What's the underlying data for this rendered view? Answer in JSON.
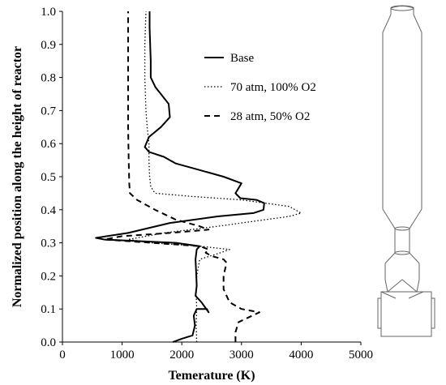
{
  "chart_data": {
    "type": "line",
    "xlabel": "Temerature (K)",
    "ylabel": "Normalized position along the height of reactor",
    "xlim": [
      0,
      5000
    ],
    "ylim": [
      0,
      1
    ],
    "xticks": [
      "0",
      "1000",
      "2000",
      "3000",
      "4000",
      "5000"
    ],
    "yticks": [
      "0.0",
      "0.1",
      "0.2",
      "0.3",
      "0.4",
      "0.5",
      "0.6",
      "0.7",
      "0.8",
      "0.9",
      "1.0"
    ],
    "grid": false,
    "legend_position": "top-right",
    "series": [
      {
        "name": "Base",
        "style": "solid",
        "points": [
          [
            1850,
            0.0
          ],
          [
            2000,
            0.01
          ],
          [
            2180,
            0.02
          ],
          [
            2220,
            0.05
          ],
          [
            2200,
            0.08
          ],
          [
            2250,
            0.1
          ],
          [
            2300,
            0.1
          ],
          [
            2420,
            0.1
          ],
          [
            2450,
            0.09
          ],
          [
            2330,
            0.12
          ],
          [
            2230,
            0.14
          ],
          [
            2250,
            0.17
          ],
          [
            2240,
            0.21
          ],
          [
            2230,
            0.25
          ],
          [
            2250,
            0.28
          ],
          [
            2300,
            0.29
          ],
          [
            1900,
            0.3
          ],
          [
            700,
            0.31
          ],
          [
            560,
            0.315
          ],
          [
            1100,
            0.33
          ],
          [
            1800,
            0.36
          ],
          [
            2600,
            0.38
          ],
          [
            3200,
            0.39
          ],
          [
            3370,
            0.4
          ],
          [
            3380,
            0.42
          ],
          [
            3250,
            0.43
          ],
          [
            2980,
            0.435
          ],
          [
            2900,
            0.45
          ],
          [
            3000,
            0.48
          ],
          [
            2700,
            0.5
          ],
          [
            2300,
            0.52
          ],
          [
            1900,
            0.54
          ],
          [
            1700,
            0.56
          ],
          [
            1450,
            0.575
          ],
          [
            1380,
            0.59
          ],
          [
            1450,
            0.62
          ],
          [
            1650,
            0.65
          ],
          [
            1800,
            0.68
          ],
          [
            1780,
            0.72
          ],
          [
            1650,
            0.75
          ],
          [
            1560,
            0.77
          ],
          [
            1480,
            0.8
          ],
          [
            1480,
            0.85
          ],
          [
            1470,
            0.9
          ],
          [
            1460,
            0.95
          ],
          [
            1460,
            1.0
          ]
        ]
      },
      {
        "name": "70 atm, 100% O2",
        "style": "dotted",
        "points": [
          [
            2250,
            0.0
          ],
          [
            2240,
            0.05
          ],
          [
            2250,
            0.1
          ],
          [
            2240,
            0.15
          ],
          [
            2250,
            0.2
          ],
          [
            2300,
            0.25
          ],
          [
            2650,
            0.27
          ],
          [
            2800,
            0.28
          ],
          [
            2300,
            0.29
          ],
          [
            1500,
            0.3
          ],
          [
            1100,
            0.31
          ],
          [
            1700,
            0.33
          ],
          [
            2600,
            0.35
          ],
          [
            3400,
            0.37
          ],
          [
            3800,
            0.38
          ],
          [
            4000,
            0.39
          ],
          [
            3800,
            0.41
          ],
          [
            3000,
            0.43
          ],
          [
            2200,
            0.44
          ],
          [
            1550,
            0.45
          ],
          [
            1480,
            0.47
          ],
          [
            1460,
            0.5
          ],
          [
            1450,
            0.55
          ],
          [
            1450,
            0.6
          ],
          [
            1420,
            0.65
          ],
          [
            1400,
            0.7
          ],
          [
            1390,
            0.75
          ],
          [
            1380,
            0.8
          ],
          [
            1380,
            0.85
          ],
          [
            1380,
            0.9
          ],
          [
            1390,
            0.95
          ],
          [
            1400,
            1.0
          ]
        ]
      },
      {
        "name": "28 atm, 50% O2",
        "style": "dashed",
        "points": [
          [
            2900,
            0.0
          ],
          [
            2900,
            0.03
          ],
          [
            2950,
            0.06
          ],
          [
            3300,
            0.09
          ],
          [
            3000,
            0.1
          ],
          [
            2800,
            0.12
          ],
          [
            2700,
            0.16
          ],
          [
            2700,
            0.2
          ],
          [
            2750,
            0.24
          ],
          [
            2700,
            0.25
          ],
          [
            2500,
            0.26
          ],
          [
            2400,
            0.27
          ],
          [
            2450,
            0.28
          ],
          [
            2300,
            0.29
          ],
          [
            1500,
            0.3
          ],
          [
            700,
            0.31
          ],
          [
            1000,
            0.32
          ],
          [
            1800,
            0.33
          ],
          [
            2450,
            0.34
          ],
          [
            2300,
            0.35
          ],
          [
            1900,
            0.37
          ],
          [
            1550,
            0.4
          ],
          [
            1250,
            0.43
          ],
          [
            1130,
            0.45
          ],
          [
            1120,
            0.48
          ],
          [
            1110,
            0.55
          ],
          [
            1100,
            0.65
          ],
          [
            1100,
            0.75
          ],
          [
            1100,
            0.85
          ],
          [
            1100,
            0.95
          ],
          [
            1100,
            1.0
          ]
        ]
      }
    ]
  }
}
